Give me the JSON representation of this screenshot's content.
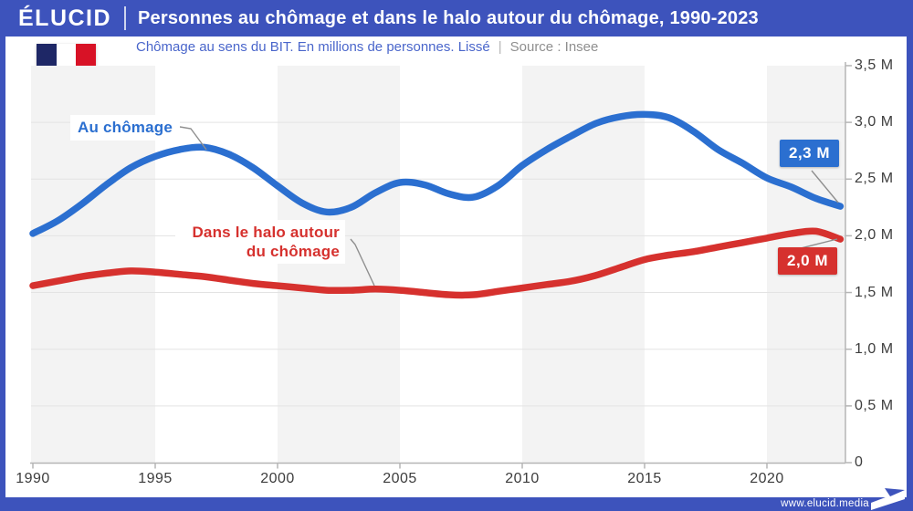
{
  "header": {
    "logo": "ÉLUCID",
    "title": "Personnes au chômage et dans le halo autour du chômage, 1990-2023"
  },
  "subtitle": {
    "description": "Chômage au sens du BIT. En millions de personnes. Lissé",
    "separator": "|",
    "source": "Source : Insee"
  },
  "footer": {
    "url": "www.elucid.media"
  },
  "colors": {
    "header_blue": "#3D53BC",
    "subtitle_blue": "#4A66CB",
    "line_blue": "#2B6FD0",
    "line_red": "#D6312E",
    "flag_blue": "#1E2766",
    "flag_red": "#D81226",
    "band_gray": "#f3f3f3",
    "grid_gray": "#e3e3e3",
    "axis_gray": "#b5b5b5"
  },
  "chart_data": {
    "type": "line",
    "title": "Personnes au chômage et dans le halo autour du chômage, 1990-2023",
    "subtitle": "Chômage au sens du BIT. En millions de personnes. Lissé",
    "source": "Source : Insee",
    "xlabel": "",
    "ylabel": "En millions de personnes",
    "xlim": [
      1990,
      2023
    ],
    "ylim": [
      0,
      3.5
    ],
    "legend_position": "inline labels with callouts",
    "x": [
      1990,
      1991,
      1992,
      1993,
      1994,
      1995,
      1996,
      1997,
      1998,
      1999,
      2000,
      2001,
      2002,
      2003,
      2004,
      2005,
      2006,
      2007,
      2008,
      2009,
      2010,
      2011,
      2012,
      2013,
      2014,
      2015,
      2016,
      2017,
      2018,
      2019,
      2020,
      2021,
      2022,
      2023
    ],
    "x_ticks": [
      1990,
      1995,
      2000,
      2005,
      2010,
      2015,
      2020
    ],
    "y_ticks": {
      "values": [
        0,
        0.5,
        1,
        1.5,
        2,
        2.5,
        3,
        3.5
      ],
      "labels": [
        "0",
        "0,5 M",
        "1,0 M",
        "1,5 M",
        "2,0 M",
        "2,5 M",
        "3,0 M",
        "3,5 M"
      ]
    },
    "grid": {
      "h_lines": [
        0.5,
        1,
        1.5,
        2,
        2.5,
        3
      ],
      "band_years": [
        [
          1990,
          1995
        ],
        [
          2000,
          2005
        ],
        [
          2010,
          2015
        ],
        [
          2020,
          2023
        ]
      ],
      "band_color": "#f3f3f3"
    },
    "series": [
      {
        "name": "Au chômage",
        "color": "#2B6FD0",
        "end_label": "2,3 M",
        "values": [
          2.02,
          2.13,
          2.28,
          2.45,
          2.6,
          2.7,
          2.76,
          2.78,
          2.72,
          2.6,
          2.44,
          2.29,
          2.21,
          2.25,
          2.38,
          2.47,
          2.45,
          2.37,
          2.34,
          2.44,
          2.62,
          2.76,
          2.88,
          2.99,
          3.05,
          3.07,
          3.04,
          2.92,
          2.76,
          2.64,
          2.51,
          2.43,
          2.33,
          2.26
        ]
      },
      {
        "name": "Dans le halo autour du chômage",
        "color": "#D6312E",
        "end_label": "2,0 M",
        "values": [
          1.56,
          1.6,
          1.64,
          1.67,
          1.69,
          1.68,
          1.66,
          1.64,
          1.61,
          1.58,
          1.56,
          1.54,
          1.52,
          1.52,
          1.53,
          1.52,
          1.5,
          1.48,
          1.48,
          1.51,
          1.54,
          1.57,
          1.6,
          1.65,
          1.72,
          1.79,
          1.83,
          1.86,
          1.9,
          1.94,
          1.98,
          2.02,
          2.04,
          1.97
        ]
      }
    ]
  }
}
